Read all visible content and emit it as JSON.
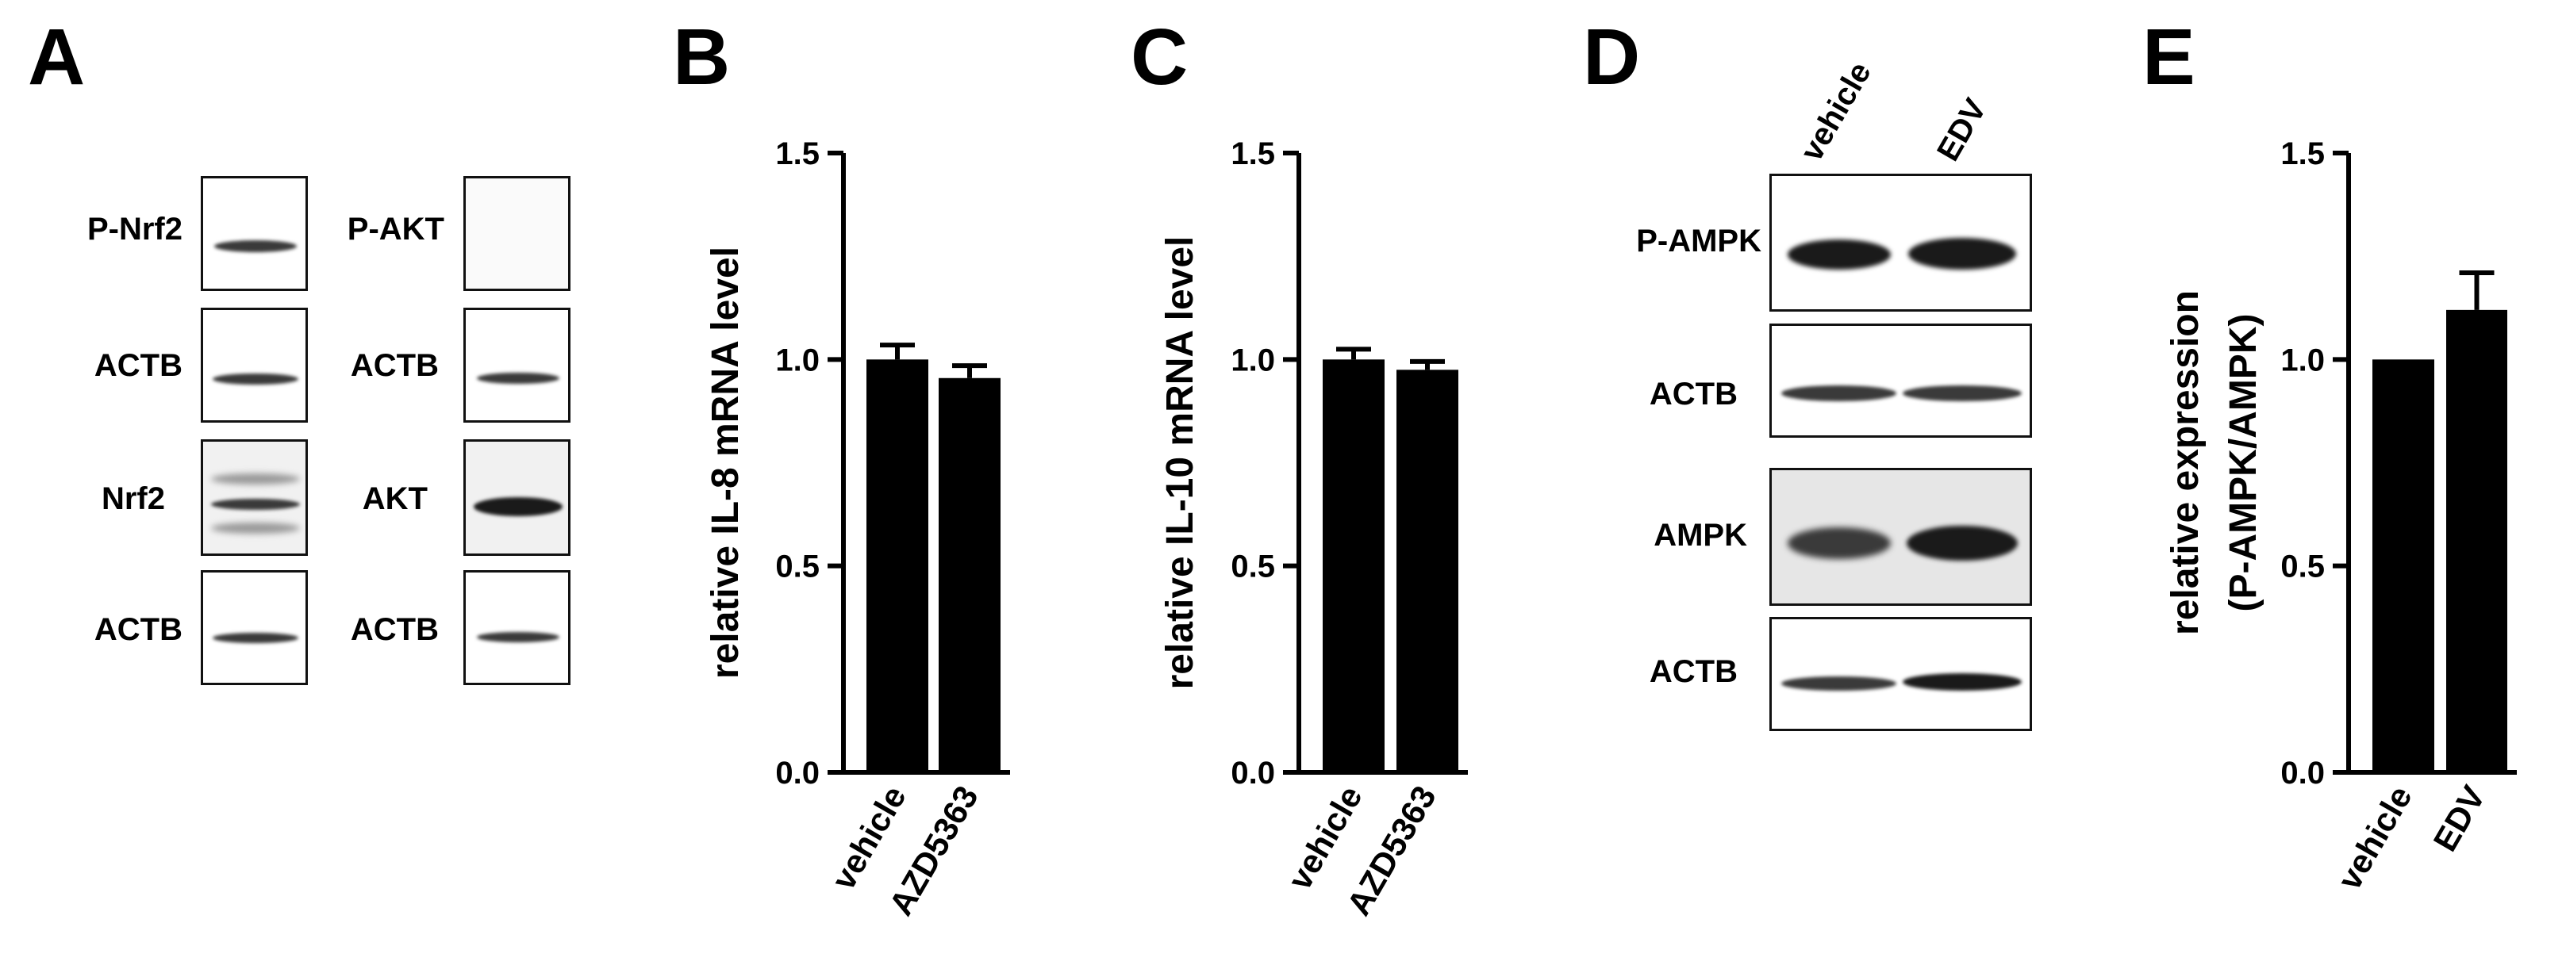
{
  "panels": {
    "A": {
      "letter": "A",
      "labels": [
        "P-Nrf2",
        "ACTB",
        "Nrf2",
        "ACTB",
        "P-AKT",
        "ACTB",
        "AKT",
        "ACTB"
      ]
    },
    "B": {
      "letter": "B"
    },
    "C": {
      "letter": "C"
    },
    "D": {
      "letter": "D",
      "lanes": [
        "vehicle",
        "EDV"
      ],
      "labels": [
        "P-AMPK",
        "ACTB",
        "AMPK",
        "ACTB"
      ]
    },
    "E": {
      "letter": "E"
    }
  },
  "chart_data": [
    {
      "panel": "B",
      "type": "bar",
      "categories": [
        "vehicle",
        "AZD5363"
      ],
      "values": [
        1.0,
        0.955
      ],
      "errors": [
        0.035,
        0.03
      ],
      "title": "",
      "xlabel": "",
      "ylabel": "relative IL-8 mRNA level",
      "ylim": [
        0,
        1.5
      ],
      "yticks": [
        "0.0",
        "0.5",
        "1.0",
        "1.5"
      ],
      "bar_color": "#000000"
    },
    {
      "panel": "C",
      "type": "bar",
      "categories": [
        "vehicle",
        "AZD5363"
      ],
      "values": [
        1.0,
        0.975
      ],
      "errors": [
        0.025,
        0.02
      ],
      "title": "",
      "xlabel": "",
      "ylabel": "relative IL-10 mRNA level",
      "ylim": [
        0,
        1.5
      ],
      "yticks": [
        "0.0",
        "0.5",
        "1.0",
        "1.5"
      ],
      "bar_color": "#000000"
    },
    {
      "panel": "E",
      "type": "bar",
      "categories": [
        "vehicle",
        "EDV"
      ],
      "values": [
        1.0,
        1.12
      ],
      "errors": [
        0,
        0.09
      ],
      "title": "",
      "xlabel": "",
      "ylabel": "relative expression",
      "ylabel2": "(P-AMPK/AMPK)",
      "ylim": [
        0,
        1.5
      ],
      "yticks": [
        "0.0",
        "0.5",
        "1.0",
        "1.5"
      ],
      "bar_color": "#000000"
    }
  ]
}
